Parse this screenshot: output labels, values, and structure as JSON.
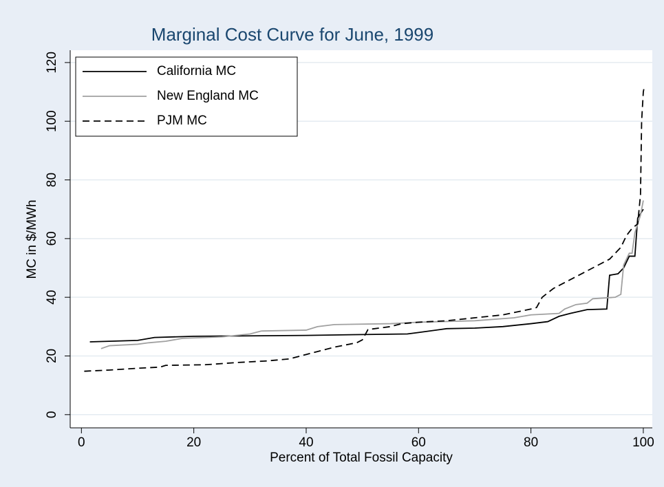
{
  "chart_data": {
    "type": "line",
    "title": "Marginal Cost Curve for June, 1999",
    "x_label": "Percent of Total Fossil Capacity",
    "y_label": "MC in $/MWh",
    "xlim": [
      -2,
      101.6
    ],
    "ylim": [
      -4.5,
      124.2
    ],
    "xticks": [
      0,
      20,
      40,
      60,
      80,
      100
    ],
    "yticks": [
      0,
      20,
      40,
      60,
      80,
      100,
      120
    ],
    "grid": true,
    "legend": "top-left",
    "series": [
      {
        "name": "California MC",
        "color": "#000000",
        "style": "solid",
        "x": [
          1.5,
          10,
          13,
          20,
          40,
          50,
          58,
          60,
          65,
          70,
          75,
          80,
          83,
          85,
          87,
          90,
          93.5,
          94,
          95.5,
          96.5,
          97.5,
          98.5,
          99,
          100
        ],
        "values": [
          24.8,
          25.3,
          26.3,
          26.7,
          27,
          27.3,
          27.5,
          28,
          29.3,
          29.5,
          30,
          31,
          31.7,
          33.5,
          34.5,
          35.8,
          36,
          47.5,
          48,
          50,
          54,
          54,
          67,
          70
        ]
      },
      {
        "name": "New England MC",
        "color": "#a0a0a0",
        "style": "solid",
        "x": [
          3.5,
          5,
          10,
          12,
          15,
          18,
          25,
          30,
          32,
          40,
          42,
          45,
          55,
          60,
          70,
          77,
          80,
          85,
          86,
          88,
          90,
          91,
          95,
          96,
          96.5,
          97.5,
          98,
          98.5,
          99.5,
          100
        ],
        "values": [
          22.5,
          23.5,
          24,
          24.5,
          25,
          26,
          26.5,
          27.5,
          28.5,
          28.8,
          30,
          30.7,
          31,
          31.5,
          32,
          33,
          34,
          34.5,
          36,
          37.5,
          38,
          39.5,
          40,
          41,
          51,
          55,
          55,
          62,
          68,
          73
        ]
      },
      {
        "name": "PJM MC",
        "color": "#000000",
        "style": "dashed",
        "x": [
          0.5,
          5,
          10,
          14,
          15,
          22,
          28,
          33,
          37,
          40,
          42,
          45,
          49,
          50,
          51,
          55,
          57,
          60,
          65,
          70,
          75,
          80,
          81,
          82,
          84,
          86,
          88,
          90,
          92,
          94,
          95,
          96,
          97,
          98,
          99,
          99.5,
          99.7,
          100,
          100.2
        ],
        "values": [
          14.8,
          15.2,
          15.8,
          16.2,
          16.8,
          17,
          17.8,
          18.3,
          19,
          20.5,
          21.5,
          23,
          24.5,
          25.5,
          29,
          30,
          31,
          31.5,
          32,
          33,
          34,
          36,
          36.5,
          40,
          43,
          45,
          47,
          49,
          51,
          53,
          55,
          57,
          61,
          63.5,
          65,
          75,
          100,
          110,
          112
        ]
      }
    ]
  }
}
